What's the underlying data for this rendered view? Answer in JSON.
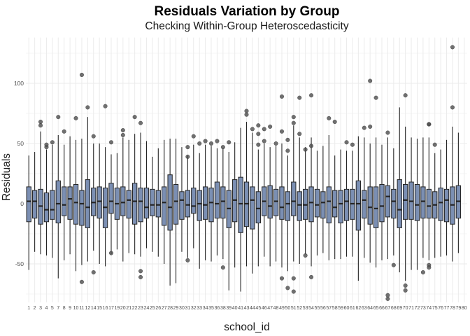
{
  "chart_data": {
    "type": "box",
    "title": "Residuals Variation by Group",
    "subtitle": "Checking Within-Group Heteroscedasticity",
    "xlabel": "school_id",
    "ylabel": "Residuals",
    "ylim": [
      -82,
      138
    ],
    "yticks": [
      -50,
      0,
      50,
      100
    ],
    "grid": true,
    "colors": {
      "box_fill": "#7b8fb3",
      "box_stroke": "#252525",
      "outlier": "#4d4d4d",
      "grid": "#ebebeb",
      "text": "#1a1a1a",
      "tick_text": "#4d4d4d"
    },
    "categories": [
      "1",
      "2",
      "3",
      "4",
      "5",
      "7",
      "8",
      "9",
      "10",
      "11",
      "12",
      "14",
      "15",
      "16",
      "17",
      "19",
      "20",
      "21",
      "22",
      "23",
      "24",
      "25",
      "26",
      "27",
      "28",
      "29",
      "30",
      "31",
      "32",
      "33",
      "34",
      "35",
      "36",
      "38",
      "39",
      "40",
      "41",
      "43",
      "44",
      "45",
      "46",
      "47",
      "48",
      "49",
      "50",
      "51",
      "52",
      "53",
      "54",
      "55",
      "56",
      "57",
      "58",
      "59",
      "60",
      "61",
      "62",
      "63",
      "64",
      "65",
      "66",
      "67",
      "68",
      "69",
      "70",
      "71",
      "72",
      "73",
      "74",
      "75",
      "76",
      "77",
      "78",
      "79",
      "80"
    ],
    "boxes": [
      {
        "q1": -15,
        "median": 2,
        "q3": 14,
        "lo": -55,
        "hi": 40,
        "out": []
      },
      {
        "q1": -12,
        "median": 2,
        "q3": 11,
        "lo": -40,
        "hi": 43,
        "out": []
      },
      {
        "q1": -17,
        "median": -2,
        "q3": 12,
        "lo": -42,
        "hi": 60,
        "out": [
          65,
          68
        ]
      },
      {
        "q1": -15,
        "median": -5,
        "q3": 9,
        "lo": -43,
        "hi": 45,
        "out": [
          47,
          49
        ]
      },
      {
        "q1": -13,
        "median": -5,
        "q3": 11,
        "lo": -45,
        "hi": 49,
        "out": [
          51
        ]
      },
      {
        "q1": -16,
        "median": 0,
        "q3": 19,
        "lo": -62,
        "hi": 57,
        "out": [
          72
        ]
      },
      {
        "q1": -10,
        "median": -1,
        "q3": 14,
        "lo": -47,
        "hi": 49,
        "out": [
          60
        ]
      },
      {
        "q1": -13,
        "median": 4,
        "q3": 14,
        "lo": -42,
        "hi": 56,
        "out": []
      },
      {
        "q1": -17,
        "median": 1,
        "q3": 16,
        "lo": -56,
        "hi": 53,
        "out": [
          71
        ]
      },
      {
        "q1": -18,
        "median": 0,
        "q3": 11,
        "lo": -51,
        "hi": 54,
        "out": [
          107,
          -65
        ]
      },
      {
        "q1": -20,
        "median": -3,
        "q3": 20,
        "lo": -48,
        "hi": 72,
        "out": [
          80
        ]
      },
      {
        "q1": -10,
        "median": 1,
        "q3": 13,
        "lo": -39,
        "hi": 50,
        "out": [
          56,
          -57
        ]
      },
      {
        "q1": -12,
        "median": 2,
        "q3": 14,
        "lo": -50,
        "hi": 50,
        "out": []
      },
      {
        "q1": -20,
        "median": -3,
        "q3": 13,
        "lo": -52,
        "hi": 47,
        "out": [
          81
        ]
      },
      {
        "q1": -8,
        "median": 2,
        "q3": 17,
        "lo": -42,
        "hi": 41,
        "out": [
          51,
          -41
        ]
      },
      {
        "q1": -13,
        "median": 0,
        "q3": 13,
        "lo": -38,
        "hi": 42,
        "out": []
      },
      {
        "q1": -10,
        "median": 1,
        "q3": 14,
        "lo": -48,
        "hi": 55,
        "out": [
          57,
          61
        ]
      },
      {
        "q1": -12,
        "median": 3,
        "q3": 11,
        "lo": -41,
        "hi": 53,
        "out": []
      },
      {
        "q1": -17,
        "median": 2,
        "q3": 17,
        "lo": -42,
        "hi": 58,
        "out": [
          72
        ]
      },
      {
        "q1": -15,
        "median": 2,
        "q3": 13,
        "lo": -44,
        "hi": 59,
        "out": [
          67,
          -56,
          -61
        ]
      },
      {
        "q1": -12,
        "median": -3,
        "q3": 13,
        "lo": -37,
        "hi": 52,
        "out": []
      },
      {
        "q1": -10,
        "median": -1,
        "q3": 12,
        "lo": -40,
        "hi": 39,
        "out": []
      },
      {
        "q1": -11,
        "median": -1,
        "q3": 11,
        "lo": -44,
        "hi": 46,
        "out": []
      },
      {
        "q1": -18,
        "median": 1,
        "q3": 14,
        "lo": -50,
        "hi": 53,
        "out": []
      },
      {
        "q1": -22,
        "median": -3,
        "q3": 24,
        "lo": -68,
        "hi": 54,
        "out": []
      },
      {
        "q1": -17,
        "median": 2,
        "q3": 16,
        "lo": -66,
        "hi": 54,
        "out": []
      },
      {
        "q1": -13,
        "median": 3,
        "q3": 10,
        "lo": -40,
        "hi": 47,
        "out": []
      },
      {
        "q1": -11,
        "median": -1,
        "q3": 11,
        "lo": -45,
        "hi": 40,
        "out": [
          47,
          39,
          -47
        ]
      },
      {
        "q1": -8,
        "median": -2,
        "q3": 13,
        "lo": -37,
        "hi": 49,
        "out": [
          56
        ]
      },
      {
        "q1": -14,
        "median": 0,
        "q3": 11,
        "lo": -54,
        "hi": 42,
        "out": [
          50
        ]
      },
      {
        "q1": -13,
        "median": -1,
        "q3": 14,
        "lo": -47,
        "hi": 49,
        "out": [
          52
        ]
      },
      {
        "q1": -15,
        "median": 1,
        "q3": 13,
        "lo": -48,
        "hi": 48,
        "out": [
          50
        ]
      },
      {
        "q1": -12,
        "median": 0,
        "q3": 18,
        "lo": -43,
        "hi": 46,
        "out": [
          52
        ]
      },
      {
        "q1": -12,
        "median": 2,
        "q3": 14,
        "lo": -46,
        "hi": 46,
        "out": [
          47,
          -53
        ]
      },
      {
        "q1": -20,
        "median": -4,
        "q3": 11,
        "lo": -72,
        "hi": 43,
        "out": [
          51
        ]
      },
      {
        "q1": -15,
        "median": 3,
        "q3": 20,
        "lo": -53,
        "hi": 51,
        "out": []
      },
      {
        "q1": -24,
        "median": 0,
        "q3": 22,
        "lo": -73,
        "hi": 63,
        "out": []
      },
      {
        "q1": -19,
        "median": 0,
        "q3": 18,
        "lo": -52,
        "hi": 68,
        "out": [
          77,
          74
        ]
      },
      {
        "q1": -21,
        "median": 3,
        "q3": 14,
        "lo": -58,
        "hi": 59,
        "out": [
          62
        ]
      },
      {
        "q1": -16,
        "median": -4,
        "q3": 10,
        "lo": -52,
        "hi": 45,
        "out": [
          65,
          58,
          49
        ]
      },
      {
        "q1": -10,
        "median": 2,
        "q3": 14,
        "lo": -44,
        "hi": 50,
        "out": [
          62,
          52
        ]
      },
      {
        "q1": -12,
        "median": -2,
        "q3": 15,
        "lo": -52,
        "hi": 47,
        "out": [
          64
        ]
      },
      {
        "q1": -10,
        "median": 2,
        "q3": 12,
        "lo": -48,
        "hi": 48,
        "out": [
          50
        ]
      },
      {
        "q1": -13,
        "median": -3,
        "q3": 14,
        "lo": -53,
        "hi": 50,
        "out": [
          89,
          60,
          -62
        ]
      },
      {
        "q1": -14,
        "median": 0,
        "q3": 10,
        "lo": -56,
        "hi": 40,
        "out": [
          44,
          53,
          -70
        ]
      },
      {
        "q1": -10,
        "median": 2,
        "q3": 18,
        "lo": -48,
        "hi": 65,
        "out": [
          72,
          67,
          -62,
          -73
        ]
      },
      {
        "q1": -14,
        "median": -1,
        "q3": 10,
        "lo": -50,
        "hi": 55,
        "out": [
          88,
          58
        ]
      },
      {
        "q1": -13,
        "median": -1,
        "q3": 12,
        "lo": -42,
        "hi": 47,
        "out": [
          45,
          -43
        ]
      },
      {
        "q1": -15,
        "median": 1,
        "q3": 14,
        "lo": -52,
        "hi": 55,
        "out": [
          90,
          48,
          -61
        ]
      },
      {
        "q1": -11,
        "median": -1,
        "q3": 12,
        "lo": -43,
        "hi": 44,
        "out": []
      },
      {
        "q1": -12,
        "median": 1,
        "q3": 10,
        "lo": -41,
        "hi": 48,
        "out": []
      },
      {
        "q1": -16,
        "median": 2,
        "q3": 14,
        "lo": -47,
        "hi": 57,
        "out": [
          71
        ]
      },
      {
        "q1": -11,
        "median": -3,
        "q3": 11,
        "lo": -46,
        "hi": 40,
        "out": [
          68
        ]
      },
      {
        "q1": -16,
        "median": 0,
        "q3": 11,
        "lo": -46,
        "hi": 45,
        "out": []
      },
      {
        "q1": -14,
        "median": 2,
        "q3": 12,
        "lo": -44,
        "hi": 44,
        "out": [
          51
        ]
      },
      {
        "q1": -13,
        "median": 0,
        "q3": 12,
        "lo": -44,
        "hi": 44,
        "out": [
          49
        ]
      },
      {
        "q1": -22,
        "median": 0,
        "q3": 19,
        "lo": -64,
        "hi": 56,
        "out": []
      },
      {
        "q1": -12,
        "median": 3,
        "q3": 11,
        "lo": -45,
        "hi": 55,
        "out": [
          63
        ]
      },
      {
        "q1": -17,
        "median": -3,
        "q3": 14,
        "lo": -49,
        "hi": 50,
        "out": [
          102,
          64
        ]
      },
      {
        "q1": -20,
        "median": -4,
        "q3": 14,
        "lo": -53,
        "hi": 55,
        "out": [
          88
        ]
      },
      {
        "q1": -15,
        "median": -2,
        "q3": 16,
        "lo": -47,
        "hi": 49,
        "out": []
      },
      {
        "q1": -11,
        "median": 6,
        "q3": 15,
        "lo": -46,
        "hi": 55,
        "out": [
          59,
          -76,
          -79
        ]
      },
      {
        "q1": -12,
        "median": 2,
        "q3": 12,
        "lo": -43,
        "hi": 46,
        "out": [
          -51
        ]
      },
      {
        "q1": -20,
        "median": -5,
        "q3": 20,
        "lo": -57,
        "hi": 80,
        "out": []
      },
      {
        "q1": -13,
        "median": 3,
        "q3": 16,
        "lo": -64,
        "hi": 64,
        "out": [
          90,
          -68,
          -72
        ]
      },
      {
        "q1": -13,
        "median": 2,
        "q3": 18,
        "lo": -55,
        "hi": 55,
        "out": []
      },
      {
        "q1": -14,
        "median": -1,
        "q3": 16,
        "lo": -55,
        "hi": 54,
        "out": []
      },
      {
        "q1": -12,
        "median": 2,
        "q3": 14,
        "lo": -45,
        "hi": 55,
        "out": [
          -57
        ]
      },
      {
        "q1": -12,
        "median": -2,
        "q3": 12,
        "lo": -47,
        "hi": 55,
        "out": [
          66,
          66,
          -51,
          -53
        ]
      },
      {
        "q1": -12,
        "median": -1,
        "q3": 10,
        "lo": -45,
        "hi": 42,
        "out": [
          49
        ]
      },
      {
        "q1": -14,
        "median": 1,
        "q3": 13,
        "lo": -44,
        "hi": 45,
        "out": []
      },
      {
        "q1": -15,
        "median": 3,
        "q3": 12,
        "lo": -43,
        "hi": 53,
        "out": []
      },
      {
        "q1": -17,
        "median": -1,
        "q3": 14,
        "lo": -48,
        "hi": 64,
        "out": [
          130,
          80
        ]
      },
      {
        "q1": -12,
        "median": 2,
        "q3": 15,
        "lo": -41,
        "hi": 59,
        "out": []
      }
    ]
  }
}
